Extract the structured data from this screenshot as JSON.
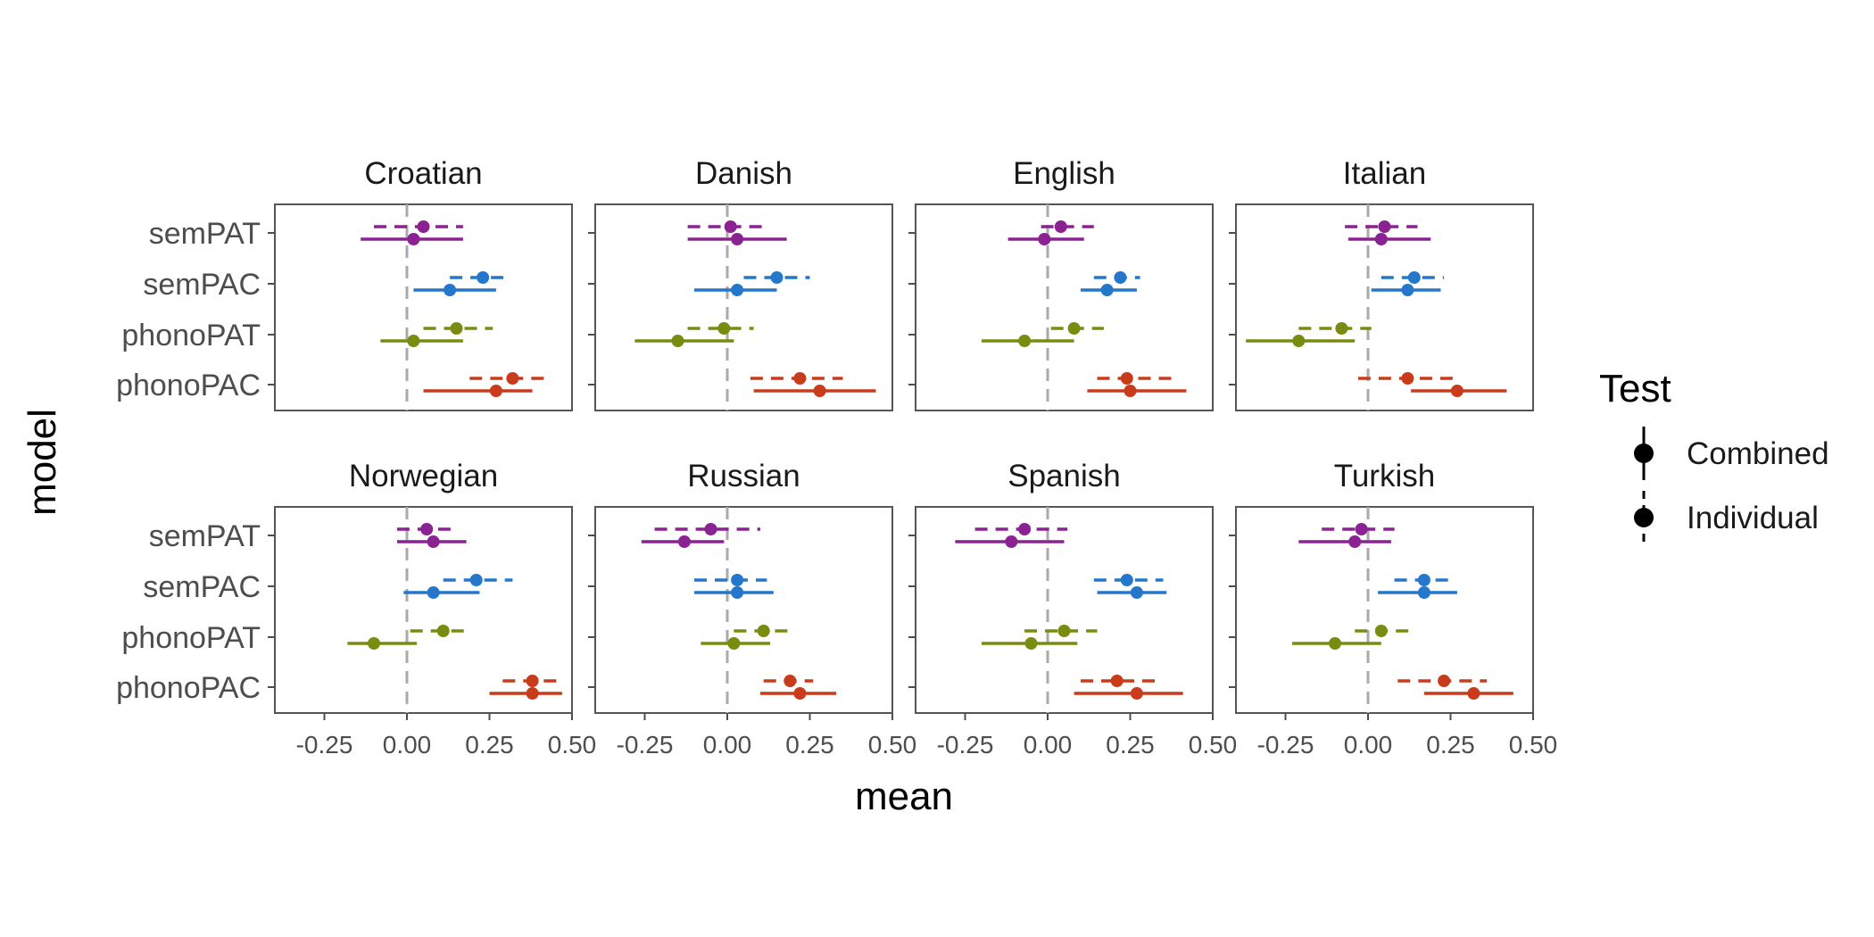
{
  "chart_data": {
    "type": "dot-interval",
    "xlabel": "mean",
    "ylabel": "model",
    "xlim": [
      -0.4,
      0.5
    ],
    "xticks": [
      -0.25,
      0.0,
      0.25,
      0.5
    ],
    "xtick_labels": [
      "-0.25",
      "0.00",
      "0.25",
      "0.50"
    ],
    "reference_line_x": 0,
    "grid": false,
    "models": [
      "semPAT",
      "semPAC",
      "phonoPAT",
      "phonoPAC"
    ],
    "model_colors": {
      "semPAT": "#8a2291",
      "semPAC": "#2577cc",
      "phonoPAT": "#7a8c10",
      "phonoPAC": "#c83c1c"
    },
    "legend": {
      "title": "Test",
      "position": "right",
      "entries": [
        {
          "label": "Combined",
          "linestyle": "solid"
        },
        {
          "label": "Individual",
          "linestyle": "dashed"
        }
      ]
    },
    "panels": [
      {
        "title": "Croatian",
        "data": {
          "semPAT": {
            "Combined": [
              0.02,
              -0.14,
              0.17
            ],
            "Individual": [
              0.05,
              -0.1,
              0.17
            ]
          },
          "semPAC": {
            "Combined": [
              0.13,
              0.02,
              0.27
            ],
            "Individual": [
              0.23,
              0.13,
              0.31
            ]
          },
          "phonoPAT": {
            "Combined": [
              0.02,
              -0.08,
              0.17
            ],
            "Individual": [
              0.15,
              0.05,
              0.26
            ]
          },
          "phonoPAC": {
            "Combined": [
              0.27,
              0.05,
              0.38
            ],
            "Individual": [
              0.32,
              0.19,
              0.42
            ]
          }
        }
      },
      {
        "title": "Danish",
        "data": {
          "semPAT": {
            "Combined": [
              0.03,
              -0.12,
              0.18
            ],
            "Individual": [
              0.01,
              -0.12,
              0.12
            ]
          },
          "semPAC": {
            "Combined": [
              0.03,
              -0.1,
              0.15
            ],
            "Individual": [
              0.15,
              0.05,
              0.25
            ]
          },
          "phonoPAT": {
            "Combined": [
              -0.15,
              -0.28,
              0.02
            ],
            "Individual": [
              -0.01,
              -0.12,
              0.08
            ]
          },
          "phonoPAC": {
            "Combined": [
              0.28,
              0.08,
              0.45
            ],
            "Individual": [
              0.22,
              0.07,
              0.35
            ]
          }
        }
      },
      {
        "title": "English",
        "data": {
          "semPAT": {
            "Combined": [
              -0.01,
              -0.12,
              0.11
            ],
            "Individual": [
              0.04,
              -0.02,
              0.14
            ]
          },
          "semPAC": {
            "Combined": [
              0.18,
              0.1,
              0.27
            ],
            "Individual": [
              0.22,
              0.14,
              0.28
            ]
          },
          "phonoPAT": {
            "Combined": [
              -0.07,
              -0.2,
              0.08
            ],
            "Individual": [
              0.08,
              0.01,
              0.17
            ]
          },
          "phonoPAC": {
            "Combined": [
              0.25,
              0.12,
              0.42
            ],
            "Individual": [
              0.24,
              0.15,
              0.38
            ]
          }
        }
      },
      {
        "title": "Italian",
        "data": {
          "semPAT": {
            "Combined": [
              0.04,
              -0.06,
              0.19
            ],
            "Individual": [
              0.05,
              -0.07,
              0.15
            ]
          },
          "semPAC": {
            "Combined": [
              0.12,
              0.01,
              0.22
            ],
            "Individual": [
              0.14,
              0.04,
              0.23
            ]
          },
          "phonoPAT": {
            "Combined": [
              -0.21,
              -0.37,
              -0.04
            ],
            "Individual": [
              -0.08,
              -0.21,
              0.01
            ]
          },
          "phonoPAC": {
            "Combined": [
              0.27,
              0.13,
              0.42
            ],
            "Individual": [
              0.12,
              -0.03,
              0.28
            ]
          }
        }
      },
      {
        "title": "Norwegian",
        "data": {
          "semPAT": {
            "Combined": [
              0.08,
              -0.03,
              0.18
            ],
            "Individual": [
              0.06,
              -0.03,
              0.14
            ]
          },
          "semPAC": {
            "Combined": [
              0.08,
              -0.01,
              0.22
            ],
            "Individual": [
              0.21,
              0.11,
              0.32
            ]
          },
          "phonoPAT": {
            "Combined": [
              -0.1,
              -0.18,
              0.03
            ],
            "Individual": [
              0.11,
              0.01,
              0.18
            ]
          },
          "phonoPAC": {
            "Combined": [
              0.38,
              0.25,
              0.47
            ],
            "Individual": [
              0.38,
              0.29,
              0.47
            ]
          }
        }
      },
      {
        "title": "Russian",
        "data": {
          "semPAT": {
            "Combined": [
              -0.13,
              -0.26,
              -0.01
            ],
            "Individual": [
              -0.05,
              -0.22,
              0.1
            ]
          },
          "semPAC": {
            "Combined": [
              0.03,
              -0.1,
              0.14
            ],
            "Individual": [
              0.03,
              -0.1,
              0.12
            ]
          },
          "phonoPAT": {
            "Combined": [
              0.02,
              -0.08,
              0.13
            ],
            "Individual": [
              0.11,
              0.02,
              0.19
            ]
          },
          "phonoPAC": {
            "Combined": [
              0.22,
              0.1,
              0.33
            ],
            "Individual": [
              0.19,
              0.11,
              0.26
            ]
          }
        }
      },
      {
        "title": "Spanish",
        "data": {
          "semPAT": {
            "Combined": [
              -0.11,
              -0.28,
              0.05
            ],
            "Individual": [
              -0.07,
              -0.22,
              0.06
            ]
          },
          "semPAC": {
            "Combined": [
              0.27,
              0.15,
              0.36
            ],
            "Individual": [
              0.24,
              0.14,
              0.35
            ]
          },
          "phonoPAT": {
            "Combined": [
              -0.05,
              -0.2,
              0.09
            ],
            "Individual": [
              0.05,
              -0.07,
              0.15
            ]
          },
          "phonoPAC": {
            "Combined": [
              0.27,
              0.08,
              0.41
            ],
            "Individual": [
              0.21,
              0.1,
              0.34
            ]
          }
        }
      },
      {
        "title": "Turkish",
        "data": {
          "semPAT": {
            "Combined": [
              -0.04,
              -0.21,
              0.07
            ],
            "Individual": [
              -0.02,
              -0.14,
              0.08
            ]
          },
          "semPAC": {
            "Combined": [
              0.17,
              0.03,
              0.27
            ],
            "Individual": [
              0.17,
              0.08,
              0.25
            ]
          },
          "phonoPAT": {
            "Combined": [
              -0.1,
              -0.23,
              0.04
            ],
            "Individual": [
              0.04,
              -0.04,
              0.13
            ]
          },
          "phonoPAC": {
            "Combined": [
              0.32,
              0.17,
              0.44
            ],
            "Individual": [
              0.23,
              0.09,
              0.36
            ]
          }
        }
      }
    ]
  }
}
